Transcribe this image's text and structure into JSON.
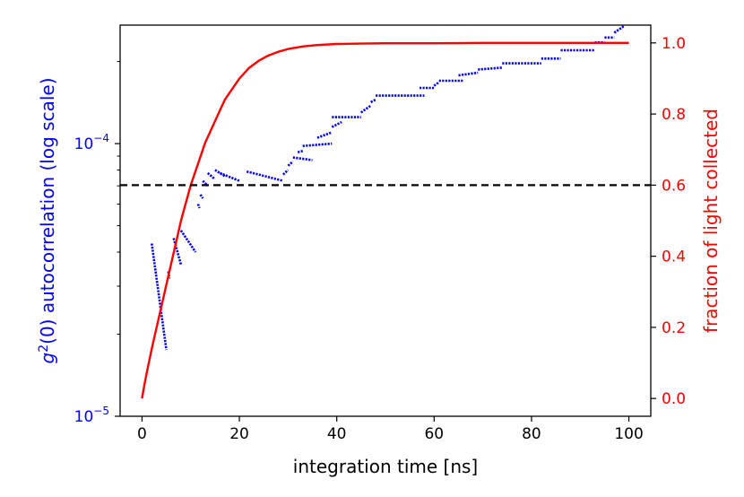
{
  "chart_data": {
    "type": "scatter",
    "title": "",
    "xlabel": "integration time [ns]",
    "ylabel_left_prefix": "g",
    "ylabel_left_sup": "2",
    "ylabel_left_rest": "(0) autocorrelation (log scale)",
    "ylabel_right": "fraction of light collected",
    "xlim": [
      -4.5,
      104.5
    ],
    "x_ticks": [
      0,
      20,
      40,
      60,
      80,
      100
    ],
    "x_tick_labels": [
      "0",
      "20",
      "40",
      "60",
      "80",
      "100"
    ],
    "y_left_scale": "log",
    "y_left_lim": [
      1e-05,
      0.000272
    ],
    "y_left_ticks": [
      {
        "value": 0.0001,
        "base": "10",
        "exp": "−4"
      },
      {
        "value": 1e-05,
        "base": "10",
        "exp": "−5"
      }
    ],
    "y_right_lim": [
      -0.05,
      1.05
    ],
    "y_right_ticks": [
      0.0,
      0.2,
      0.4,
      0.6,
      0.8,
      1.0
    ],
    "y_right_tick_labels": [
      "0.0",
      "0.2",
      "0.4",
      "0.6",
      "0.8",
      "1.0"
    ],
    "colors": {
      "left_axis": "#0000ff",
      "right_axis": "#ff0000",
      "threshold": "#000000"
    },
    "series": [
      {
        "axis": "left",
        "color": "#0000ff",
        "style": "dotted-segments",
        "segments": [
          {
            "x": [
              2,
              5
            ],
            "y": [
              4.3e-05,
              1.75e-05
            ]
          },
          {
            "x": [
              5.4,
              5.6
            ],
            "y": [
              3.4e-05,
              3.2e-05
            ]
          },
          {
            "x": [
              6.5,
              8
            ],
            "y": [
              4.5e-05,
              3.6e-05
            ]
          },
          {
            "x": [
              8,
              11
            ],
            "y": [
              4.8e-05,
              4e-05
            ]
          },
          {
            "x": [
              10.5,
              10.5
            ],
            "y": [
              5.3e-05,
              5.3e-05
            ]
          },
          {
            "x": [
              11.5,
              11.8
            ],
            "y": [
              6e-05,
              5.8e-05
            ]
          },
          {
            "x": [
              12,
              12.5
            ],
            "y": [
              6.5e-05,
              6.3e-05
            ]
          },
          {
            "x": [
              12.5,
              13.5
            ],
            "y": [
              7.3e-05,
              7e-05
            ]
          },
          {
            "x": [
              13.5,
              15
            ],
            "y": [
              7.8e-05,
              7.4e-05
            ]
          },
          {
            "x": [
              15,
              17
            ],
            "y": [
              8e-05,
              7.6e-05
            ]
          },
          {
            "x": [
              16,
              20
            ],
            "y": [
              7.8e-05,
              7.3e-05
            ]
          },
          {
            "x": [
              21.5,
              24
            ],
            "y": [
              7.9e-05,
              7.7e-05
            ]
          },
          {
            "x": [
              24,
              29
            ],
            "y": [
              7.7e-05,
              7.3e-05
            ]
          },
          {
            "x": [
              29,
              30
            ],
            "y": [
              7.7e-05,
              8e-05
            ]
          },
          {
            "x": [
              30,
              31
            ],
            "y": [
              8.3e-05,
              8.6e-05
            ]
          },
          {
            "x": [
              31,
              35
            ],
            "y": [
              8.9e-05,
              8.7e-05
            ]
          },
          {
            "x": [
              32,
              33
            ],
            "y": [
              9.3e-05,
              9.4e-05
            ]
          },
          {
            "x": [
              33,
              39
            ],
            "y": [
              9.8e-05,
              0.0001
            ]
          },
          {
            "x": [
              36,
              39
            ],
            "y": [
              0.000105,
              0.00011
            ]
          },
          {
            "x": [
              39,
              41
            ],
            "y": [
              0.000115,
              0.00012
            ]
          },
          {
            "x": [
              39,
              45
            ],
            "y": [
              0.000125,
              0.000125
            ]
          },
          {
            "x": [
              45,
              47
            ],
            "y": [
              0.00013,
              0.000138
            ]
          },
          {
            "x": [
              47,
              48
            ],
            "y": [
              0.000142,
              0.000145
            ]
          },
          {
            "x": [
              48,
              58
            ],
            "y": [
              0.00015,
              0.00015
            ]
          },
          {
            "x": [
              57,
              60
            ],
            "y": [
              0.00016,
              0.00016
            ]
          },
          {
            "x": [
              60,
              61
            ],
            "y": [
              0.000163,
              0.000168
            ]
          },
          {
            "x": [
              61,
              66
            ],
            "y": [
              0.00017,
              0.00017
            ]
          },
          {
            "x": [
              65,
              69
            ],
            "y": [
              0.000178,
              0.000182
            ]
          },
          {
            "x": [
              69,
              74
            ],
            "y": [
              0.000187,
              0.00019
            ]
          },
          {
            "x": [
              74,
              82
            ],
            "y": [
              0.000197,
              0.000197
            ]
          },
          {
            "x": [
              82,
              86
            ],
            "y": [
              0.000205,
              0.000205
            ]
          },
          {
            "x": [
              86,
              93
            ],
            "y": [
              0.00022,
              0.00022
            ]
          },
          {
            "x": [
              93,
              95
            ],
            "y": [
              0.000235,
              0.000235
            ]
          },
          {
            "x": [
              95,
              97
            ],
            "y": [
              0.000245,
              0.000245
            ]
          },
          {
            "x": [
              97,
              99
            ],
            "y": [
              0.000255,
              0.00027
            ]
          }
        ]
      },
      {
        "axis": "right",
        "color": "#ff0000",
        "style": "line",
        "x": [
          0,
          0.5,
          1,
          2,
          3,
          4,
          5,
          6,
          7,
          8,
          9,
          10,
          11,
          12,
          13,
          14,
          15,
          16,
          17,
          18,
          19,
          20,
          22,
          24,
          26,
          28,
          30,
          33,
          36,
          40,
          45,
          50,
          55,
          60,
          70,
          80,
          90,
          100
        ],
        "y": [
          0,
          0.04,
          0.075,
          0.14,
          0.2,
          0.26,
          0.32,
          0.38,
          0.44,
          0.5,
          0.55,
          0.6,
          0.64,
          0.68,
          0.72,
          0.75,
          0.78,
          0.81,
          0.84,
          0.86,
          0.88,
          0.9,
          0.93,
          0.95,
          0.965,
          0.975,
          0.983,
          0.99,
          0.994,
          0.997,
          0.998,
          0.999,
          0.999,
          0.999,
          1.0,
          1.0,
          1.0,
          1.0
        ]
      },
      {
        "axis": "right",
        "color": "#000000",
        "style": "dashed",
        "x": [
          -4.5,
          104.5
        ],
        "y": [
          0.6,
          0.6
        ]
      }
    ]
  }
}
